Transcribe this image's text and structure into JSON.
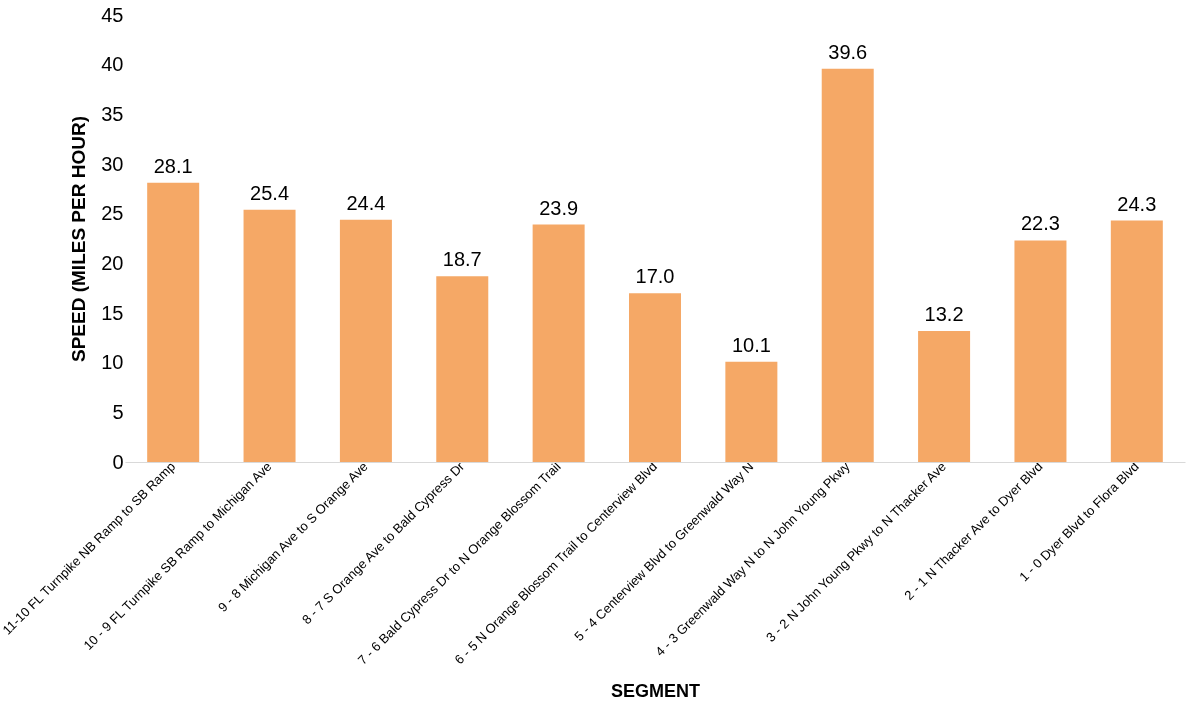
{
  "chart_data": {
    "type": "bar",
    "xlabel": "SEGMENT",
    "ylabel": "SPEED (MILES PER HOUR)",
    "categories": [
      "11-10 FL Turnpike NB Ramp to SB Ramp",
      "10 - 9 FL Turnpike SB Ramp to Michigan Ave",
      "9 - 8 Michigan Ave to S Orange Ave",
      "8 - 7  S Orange Ave to Bald Cypress Dr",
      "7 - 6 Bald Cypress Dr to N Orange Blossom Trail",
      "6 - 5 N Orange Blossom Trail to Centerview Blvd",
      "5 - 4 Centerview Blvd to Greenwald Way N",
      "4 - 3  Greenwald Way N to N John Young Pkwy",
      "3 - 2 N John Young Pkwy to N Thacker Ave",
      "2 - 1  N Thacker Ave to Dyer Blvd",
      "1 - 0 Dyer Blvd to Flora Blvd"
    ],
    "values": [
      28.1,
      25.4,
      24.4,
      18.7,
      23.9,
      17.0,
      10.1,
      39.6,
      13.2,
      22.3,
      24.3
    ],
    "value_labels": [
      "28.1",
      "25.4",
      "24.4",
      "18.7",
      "23.9",
      "17.0",
      "10.1",
      "39.6",
      "13.2",
      "22.3",
      "24.3"
    ],
    "color": "#f5a866",
    "ylim": [
      0,
      45
    ],
    "yticks": [
      0,
      5,
      10,
      15,
      20,
      25,
      30,
      35,
      40,
      45
    ],
    "grid": false
  }
}
